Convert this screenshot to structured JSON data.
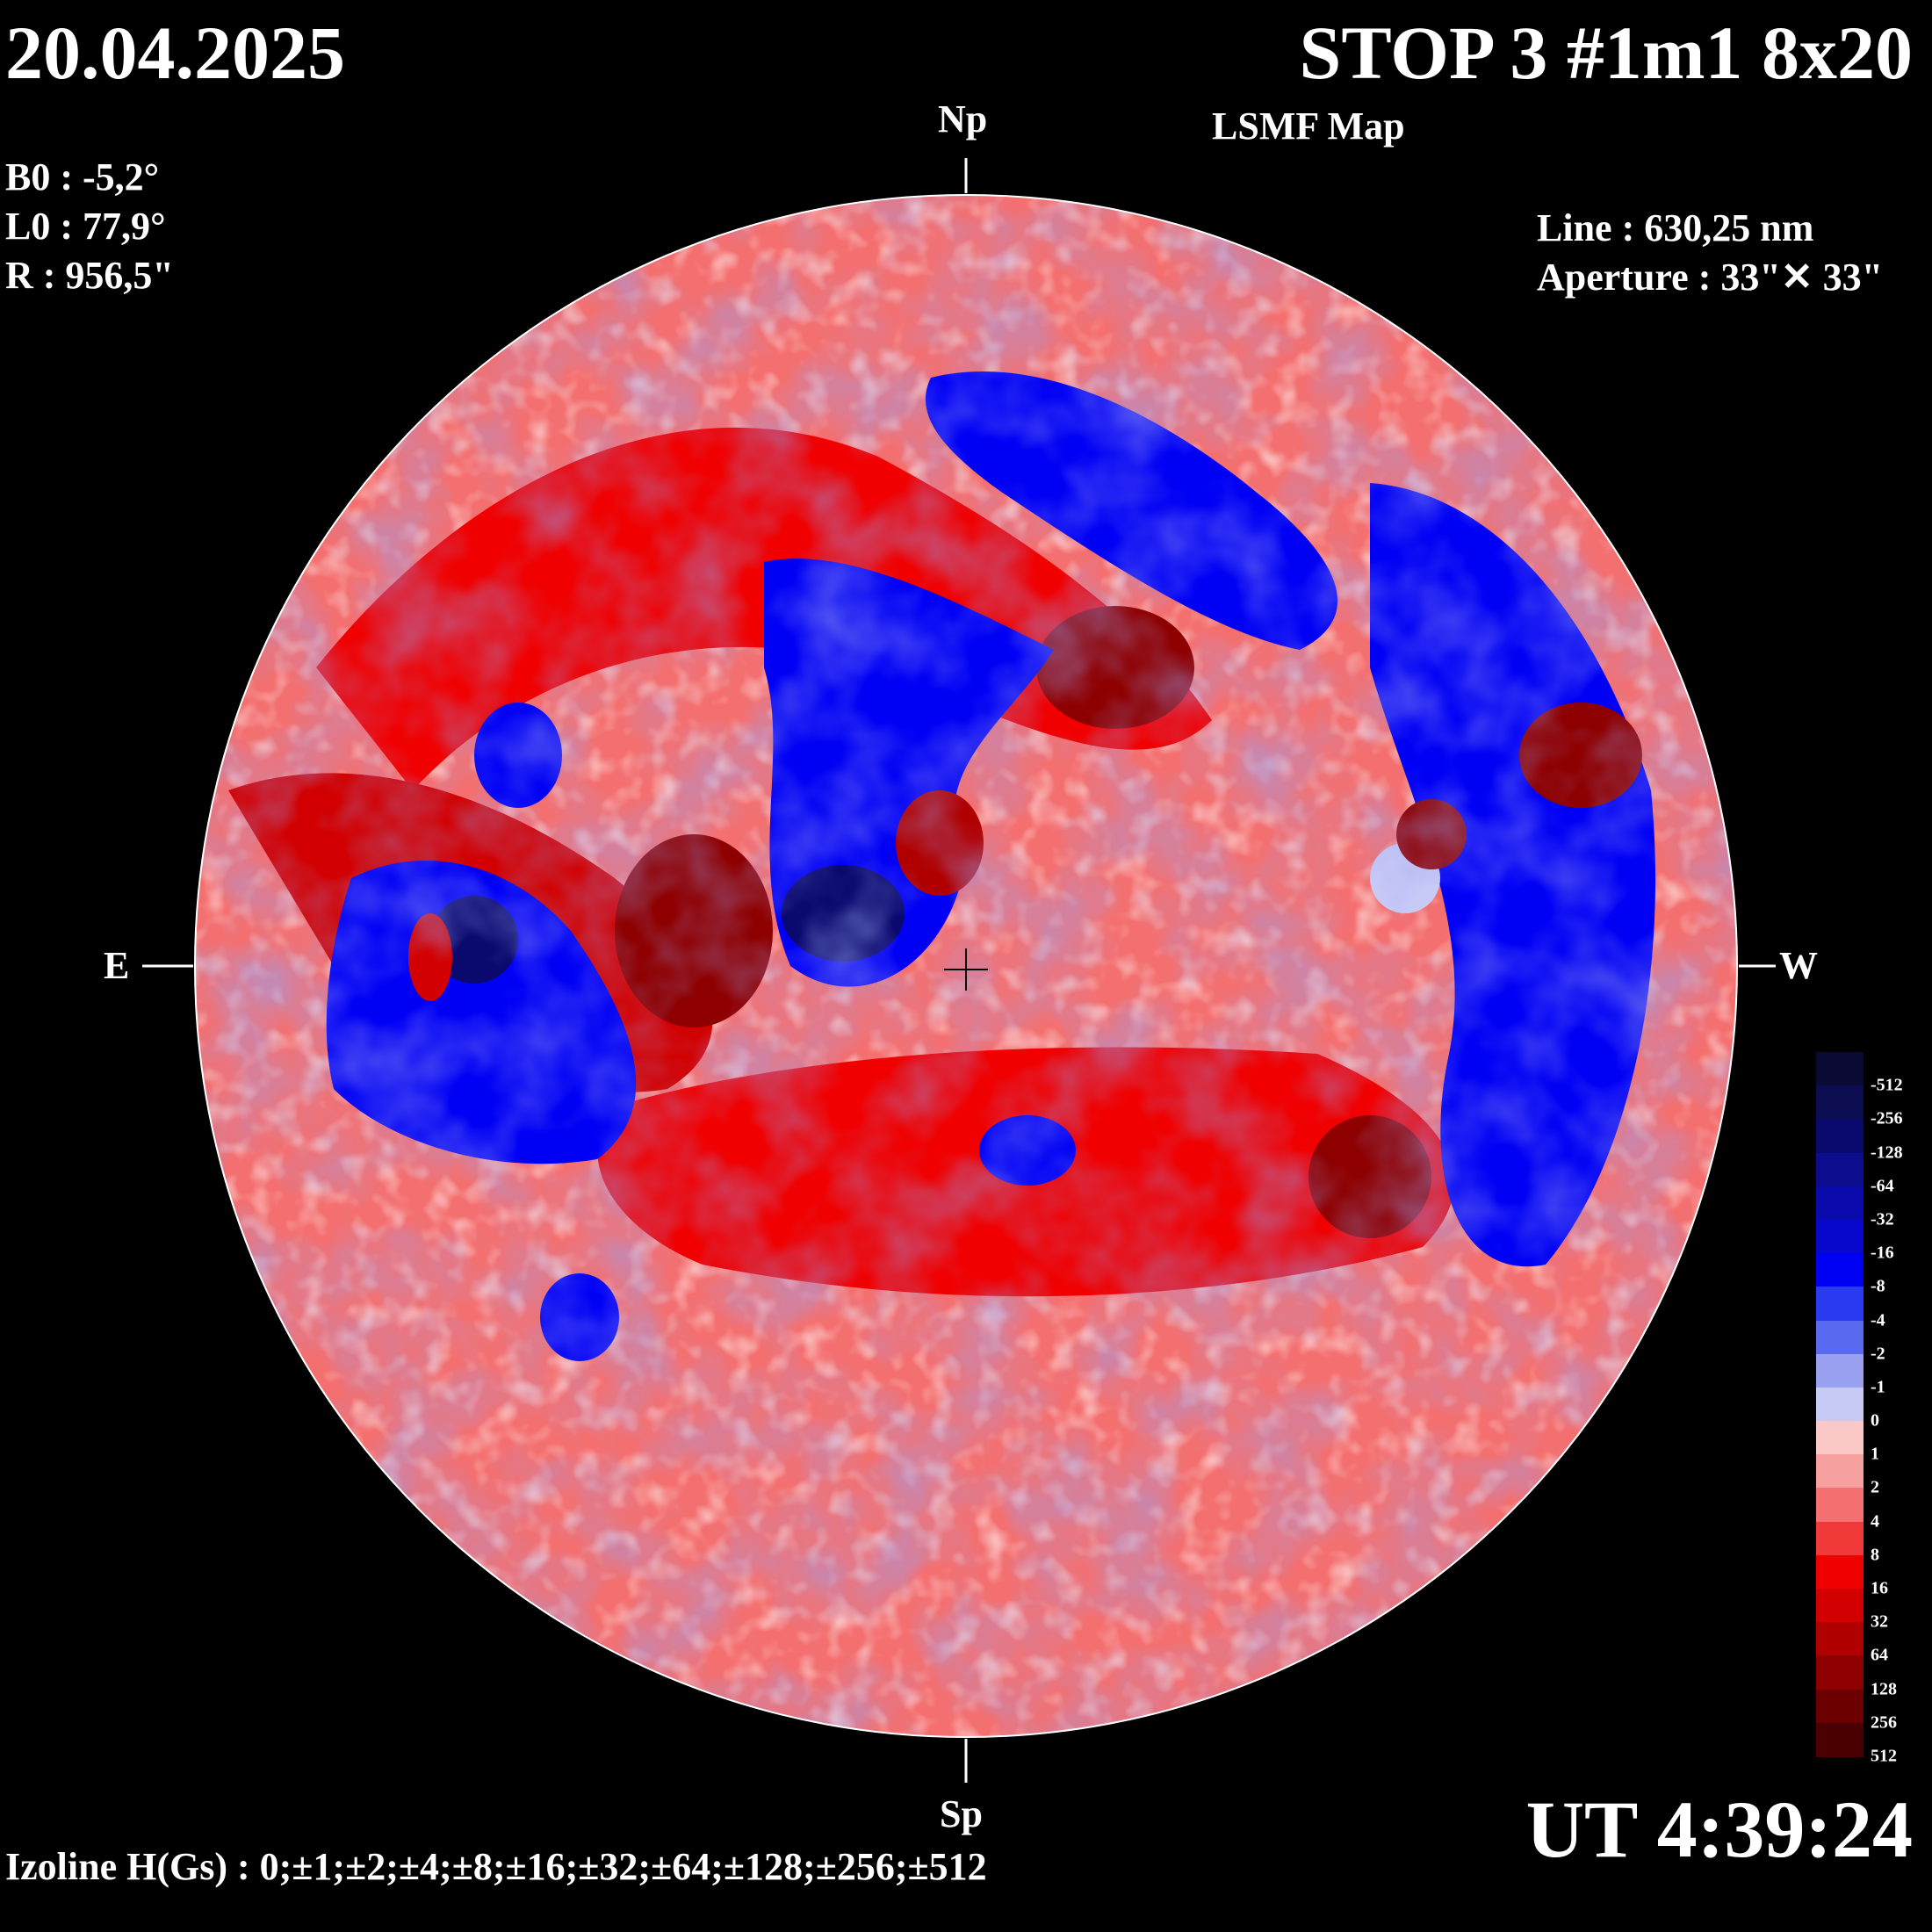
{
  "header": {
    "date": "20.04.2025",
    "title": "STOP 3 #1m1 8x20",
    "subtitle": "LSMF  Map"
  },
  "params": {
    "b0": "B0 : -5,2°",
    "l0": "L0 : 77,9°",
    "r": "R  : 956,5\""
  },
  "instrument": {
    "line": "Line :  630,25 nm",
    "aperture": "Aperture : 33\"✕ 33\""
  },
  "compass": {
    "north": "Np",
    "south": "Sp",
    "east": "E",
    "west": "W"
  },
  "footer": {
    "time": "UT 4:39:24",
    "izoline": "Izoline H(Gs) : 0;±1;±2;±4;±8;±16;±32;±64;±128;±256;±512"
  },
  "colorbar": {
    "levels": [
      "-512",
      "-256",
      "-128",
      "-64",
      "-32",
      "-16",
      "-8",
      "-4",
      "-2",
      "-1",
      "0",
      "1",
      "2",
      "4",
      "8",
      "16",
      "32",
      "64",
      "128",
      "256",
      "512"
    ],
    "colors": [
      "#0a0a33",
      "#0c0c50",
      "#0a0a6e",
      "#0c0c8e",
      "#0a0aad",
      "#0808cc",
      "#0000f5",
      "#2a3cf0",
      "#5a6af0",
      "#9aa0f0",
      "#c8caf6",
      "#fbc8c8",
      "#f7a0a0",
      "#f47070",
      "#f03a3a",
      "#f00000",
      "#d20000",
      "#b00000",
      "#8e0000",
      "#6c0000",
      "#4a0000"
    ]
  }
}
